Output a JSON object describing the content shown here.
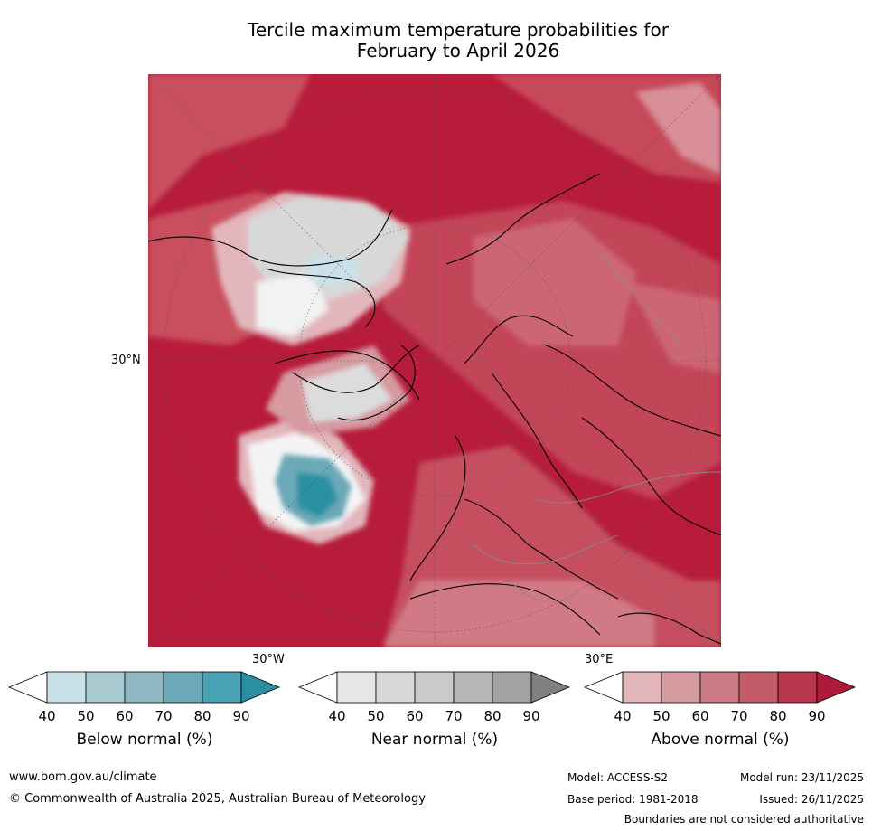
{
  "title_line1": "Tercile maximum temperature probabilities for",
  "title_line2": "February to April 2026",
  "map": {
    "lat_label": "30°N",
    "lon_label_west": "30°W",
    "lon_label_east": "30°E"
  },
  "legends": [
    {
      "id": "below",
      "title": "Below normal (%)",
      "ticks": [
        "40",
        "50",
        "60",
        "70",
        "80",
        "90"
      ],
      "colors": [
        "#ffffff",
        "#c9e2e9",
        "#a8c9cf",
        "#8db8c2",
        "#6ba9b8",
        "#48a2b4",
        "#2a8fa3"
      ]
    },
    {
      "id": "near",
      "title": "Near normal (%)",
      "ticks": [
        "40",
        "50",
        "60",
        "70",
        "80",
        "90"
      ],
      "colors": [
        "#ffffff",
        "#e6e6e6",
        "#d8d8d8",
        "#cacaca",
        "#b6b6b6",
        "#a2a2a2",
        "#808080"
      ]
    },
    {
      "id": "above",
      "title": "Above normal (%)",
      "ticks": [
        "40",
        "50",
        "60",
        "70",
        "80",
        "90"
      ],
      "colors": [
        "#ffffff",
        "#e2b6bb",
        "#d69aa1",
        "#cb7982",
        "#c25c69",
        "#b8364b",
        "#b01a3a"
      ]
    }
  ],
  "footer": {
    "website": "www.bom.gov.au/climate",
    "copyright": "© Commonwealth of Australia 2025, Australian Bureau of Meteorology",
    "model": "Model: ACCESS-S2",
    "base_period": "Base period: 1981-2018",
    "model_run": "Model run: 23/11/2025",
    "issued": "Issued: 26/11/2025",
    "disclaimer": "Boundaries are not considered authoritative"
  }
}
